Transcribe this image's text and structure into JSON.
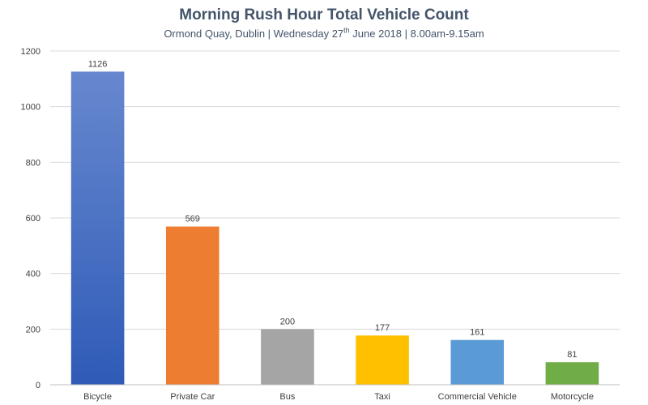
{
  "chart_data": {
    "type": "bar",
    "title": "Morning Rush Hour Total Vehicle Count",
    "subtitle": {
      "before": "Ormond Quay, Dublin | Wednesday 27",
      "sup": "th",
      "after": " June 2018 | 8.00am-9.15am"
    },
    "xlabel": "",
    "ylabel": "",
    "categories": [
      "Bicycle",
      "Private Car",
      "Bus",
      "Taxi",
      "Commercial Vehicle",
      "Motorcycle"
    ],
    "values": [
      1126,
      569,
      200,
      177,
      161,
      81
    ],
    "data_labels": [
      "1126",
      "569",
      "200",
      "177",
      "161",
      "81"
    ],
    "colors": [
      "#4472c4",
      "#ed7d31",
      "#a5a5a5",
      "#ffc000",
      "#5b9bd5",
      "#70ad47"
    ],
    "ylim": [
      0,
      1200
    ],
    "yticks": [
      0,
      200,
      400,
      600,
      800,
      1000,
      1200
    ],
    "ytick_labels": [
      "0",
      "200",
      "400",
      "600",
      "800",
      "1000",
      "1200"
    ],
    "grid": true,
    "legend": "none"
  }
}
